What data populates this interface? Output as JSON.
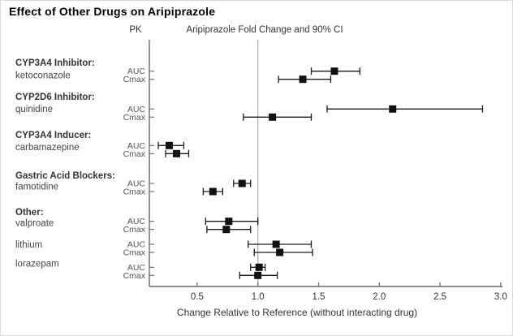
{
  "chart_data": {
    "type": "scatter",
    "subtype": "forest-plot",
    "title": "Effect of Other Drugs on Aripiprazole",
    "column_headers": {
      "pk": "PK",
      "value_axis": "Aripiprazole Fold Change and 90% CI"
    },
    "xlabel": "Change Relative to Reference (without interacting drug)",
    "x_tick_labels": [
      "0.5",
      "1.0",
      "1.5",
      "2.0",
      "2.5",
      "3.0"
    ],
    "xlim": [
      0.1,
      3.0
    ],
    "reference_line": 1.0,
    "legend": "none",
    "grid": false,
    "metrics_per_group": [
      "AUC",
      "Cmax"
    ],
    "groups": [
      {
        "category": "CYP3A4 Inhibitor:",
        "drug": "ketoconazole",
        "rows": [
          {
            "metric": "AUC",
            "value": 1.63,
            "ci_low": 1.44,
            "ci_high": 1.84
          },
          {
            "metric": "Cmax",
            "value": 1.37,
            "ci_low": 1.17,
            "ci_high": 1.6
          }
        ]
      },
      {
        "category": "CYP2D6 Inhibitor:",
        "drug": "quinidine",
        "rows": [
          {
            "metric": "AUC",
            "value": 2.11,
            "ci_low": 1.57,
            "ci_high": 2.85
          },
          {
            "metric": "Cmax",
            "value": 1.12,
            "ci_low": 0.88,
            "ci_high": 1.44
          }
        ]
      },
      {
        "category": "CYP3A4 Inducer:",
        "drug": "carbamazepine",
        "rows": [
          {
            "metric": "AUC",
            "value": 0.27,
            "ci_low": 0.18,
            "ci_high": 0.39
          },
          {
            "metric": "Cmax",
            "value": 0.33,
            "ci_low": 0.24,
            "ci_high": 0.43
          }
        ]
      },
      {
        "category": "Gastric Acid Blockers:",
        "drug": "famotidine",
        "rows": [
          {
            "metric": "AUC",
            "value": 0.87,
            "ci_low": 0.8,
            "ci_high": 0.94
          },
          {
            "metric": "Cmax",
            "value": 0.63,
            "ci_low": 0.55,
            "ci_high": 0.71
          }
        ]
      },
      {
        "category": "Other:",
        "drug": "valproate",
        "rows": [
          {
            "metric": "AUC",
            "value": 0.76,
            "ci_low": 0.57,
            "ci_high": 1.0
          },
          {
            "metric": "Cmax",
            "value": 0.74,
            "ci_low": 0.58,
            "ci_high": 0.94
          }
        ]
      },
      {
        "category": "",
        "drug": "lithium",
        "rows": [
          {
            "metric": "AUC",
            "value": 1.15,
            "ci_low": 0.92,
            "ci_high": 1.44
          },
          {
            "metric": "Cmax",
            "value": 1.18,
            "ci_low": 0.97,
            "ci_high": 1.45
          }
        ]
      },
      {
        "category": "",
        "drug": "lorazepam",
        "rows": [
          {
            "metric": "AUC",
            "value": 1.01,
            "ci_low": 0.94,
            "ci_high": 1.06
          },
          {
            "metric": "Cmax",
            "value": 1.0,
            "ci_low": 0.85,
            "ci_high": 1.16
          }
        ]
      }
    ]
  },
  "colors": {
    "marker": "#111111",
    "ci_line": "#1a1a1a",
    "reference_line": "#aebfb8",
    "axis": "#666666",
    "category_text": "#333333",
    "drug_text": "#444444",
    "metric_text": "#555555",
    "tick_text": "#333333"
  }
}
